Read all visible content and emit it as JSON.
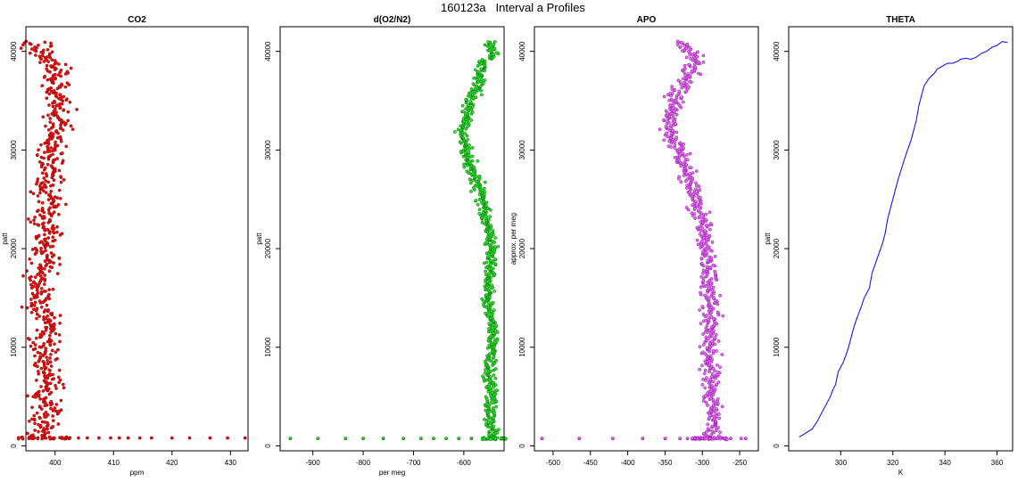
{
  "figure_title": "160123a   Interval a Profiles",
  "chart_data": [
    {
      "id": "co2",
      "type": "scatter",
      "title": "CO2",
      "xlabel": "ppm",
      "ylabel": "patt",
      "xlim": [
        395,
        433
      ],
      "ylim": [
        -500,
        42500
      ],
      "xticks": [
        400,
        410,
        420,
        430
      ],
      "yticks": [
        0,
        10000,
        20000,
        30000,
        40000
      ],
      "colors": {
        "fill": "#ee1111",
        "edge": "#8b0000"
      },
      "profile": [
        [
          398.0,
          900
        ],
        [
          396.0,
          1000
        ],
        [
          398.5,
          1500
        ],
        [
          397.5,
          2500
        ],
        [
          399.0,
          3500
        ],
        [
          398.0,
          5000
        ],
        [
          399.5,
          6500
        ],
        [
          397.5,
          8000
        ],
        [
          399.0,
          9500
        ],
        [
          398.0,
          11000
        ],
        [
          399.5,
          12500
        ],
        [
          397.0,
          14000
        ],
        [
          398.0,
          15500
        ],
        [
          396.5,
          17000
        ],
        [
          399.0,
          18500
        ],
        [
          398.0,
          20000
        ],
        [
          399.0,
          21500
        ],
        [
          398.0,
          23000
        ],
        [
          399.5,
          24500
        ],
        [
          398.0,
          26000
        ],
        [
          399.5,
          27500
        ],
        [
          398.5,
          29000
        ],
        [
          399.0,
          30500
        ],
        [
          400.0,
          32000
        ],
        [
          400.5,
          33500
        ],
        [
          401.0,
          35000
        ],
        [
          400.0,
          36500
        ],
        [
          400.5,
          38000
        ],
        [
          399.0,
          39000
        ],
        [
          397.0,
          40000
        ],
        [
          397.0,
          40500
        ],
        [
          396.0,
          41000
        ]
      ],
      "spread": 1.2,
      "bottom_points": {
        "y": 800,
        "x": [
          404.0,
          405.5,
          407.5,
          409.5,
          411.0,
          412.5,
          414.5,
          416.5,
          420.0,
          423.0,
          426.5,
          429.5,
          432.5
        ]
      }
    },
    {
      "id": "do2n2",
      "type": "scatter",
      "title": "d(O2/N2)",
      "xlabel": "per meg",
      "ylabel": "patt",
      "xlim": [
        -965,
        -520
      ],
      "ylim": [
        -500,
        42500
      ],
      "xticks": [
        -900,
        -800,
        -700,
        -600
      ],
      "yticks": [
        0,
        10000,
        20000,
        30000,
        40000
      ],
      "colors": {
        "fill": "#22ee22",
        "edge": "#0a5c0a"
      },
      "profile": [
        [
          -540,
          800
        ],
        [
          -548,
          2500
        ],
        [
          -545,
          5000
        ],
        [
          -550,
          8000
        ],
        [
          -540,
          10000
        ],
        [
          -545,
          12500
        ],
        [
          -552,
          15000
        ],
        [
          -548,
          17500
        ],
        [
          -545,
          20000
        ],
        [
          -552,
          22500
        ],
        [
          -565,
          25000
        ],
        [
          -580,
          27500
        ],
        [
          -600,
          30500
        ],
        [
          -603,
          32000
        ],
        [
          -595,
          33500
        ],
        [
          -580,
          35500
        ],
        [
          -565,
          37500
        ],
        [
          -560,
          39000
        ],
        [
          -540,
          39800
        ],
        [
          -545,
          40500
        ],
        [
          -550,
          41000
        ]
      ],
      "spread": 6,
      "bottom_points": {
        "y": 750,
        "x": [
          -945,
          -890,
          -835,
          -800,
          -760,
          -720,
          -685,
          -660,
          -635,
          -610,
          -585
        ]
      }
    },
    {
      "id": "apo",
      "type": "scatter",
      "title": "APO",
      "xlabel": "",
      "ylabel": "approx. per meg",
      "xlim": [
        -525,
        -225
      ],
      "ylim": [
        -500,
        42500
      ],
      "xticks": [
        -500,
        -450,
        -400,
        -350,
        -300,
        -250
      ],
      "yticks": [
        0,
        10000,
        20000,
        30000,
        40000
      ],
      "colors": {
        "fill": "#dd77ee",
        "edge": "#9900aa"
      },
      "profile": [
        [
          -290,
          800
        ],
        [
          -285,
          2500
        ],
        [
          -290,
          5000
        ],
        [
          -288,
          8000
        ],
        [
          -292,
          10000
        ],
        [
          -290,
          12500
        ],
        [
          -288,
          15000
        ],
        [
          -292,
          17500
        ],
        [
          -296,
          20000
        ],
        [
          -298,
          22500
        ],
        [
          -310,
          25000
        ],
        [
          -320,
          27500
        ],
        [
          -330,
          30000
        ],
        [
          -345,
          31500
        ],
        [
          -340,
          33500
        ],
        [
          -335,
          35500
        ],
        [
          -320,
          37500
        ],
        [
          -310,
          39000
        ],
        [
          -320,
          40500
        ],
        [
          -330,
          41000
        ]
      ],
      "spread": 6,
      "bottom_points": {
        "y": 750,
        "x": [
          -515,
          -465,
          -420,
          -380,
          -350,
          -330,
          -320,
          -310,
          -300,
          -290,
          -280,
          -270,
          -262,
          -248,
          -242
        ]
      }
    },
    {
      "id": "theta",
      "type": "line",
      "title": "THETA",
      "xlabel": "K",
      "ylabel": "patt",
      "xlim": [
        280,
        366
      ],
      "ylim": [
        -500,
        42500
      ],
      "xticks": [
        300,
        320,
        340,
        360
      ],
      "yticks": [
        0,
        10000,
        20000,
        30000,
        40000
      ],
      "colors": {
        "line": "#0000ff"
      },
      "x": [
        284,
        286,
        289,
        291,
        293,
        295,
        296,
        297,
        298,
        299,
        301,
        302,
        303,
        304,
        305,
        306,
        307,
        308,
        309,
        311,
        312,
        314,
        316,
        317,
        318,
        320,
        322,
        325,
        327,
        328,
        329,
        330,
        331,
        332,
        334,
        336,
        337,
        339,
        341,
        343,
        345,
        346,
        348,
        350,
        352,
        354,
        356,
        358,
        360,
        362,
        364
      ],
      "y": [
        900,
        1200,
        1700,
        2500,
        3500,
        4500,
        5000,
        5700,
        6200,
        7500,
        8500,
        9200,
        10000,
        11000,
        12000,
        12800,
        13500,
        14200,
        15000,
        16000,
        17500,
        19000,
        20500,
        21500,
        23000,
        25000,
        27000,
        29500,
        31000,
        32000,
        33000,
        34500,
        35500,
        36500,
        37300,
        37800,
        38200,
        38500,
        38800,
        38800,
        39000,
        39200,
        39300,
        39200,
        39400,
        39800,
        40000,
        40400,
        40600,
        41000,
        40900
      ]
    }
  ]
}
